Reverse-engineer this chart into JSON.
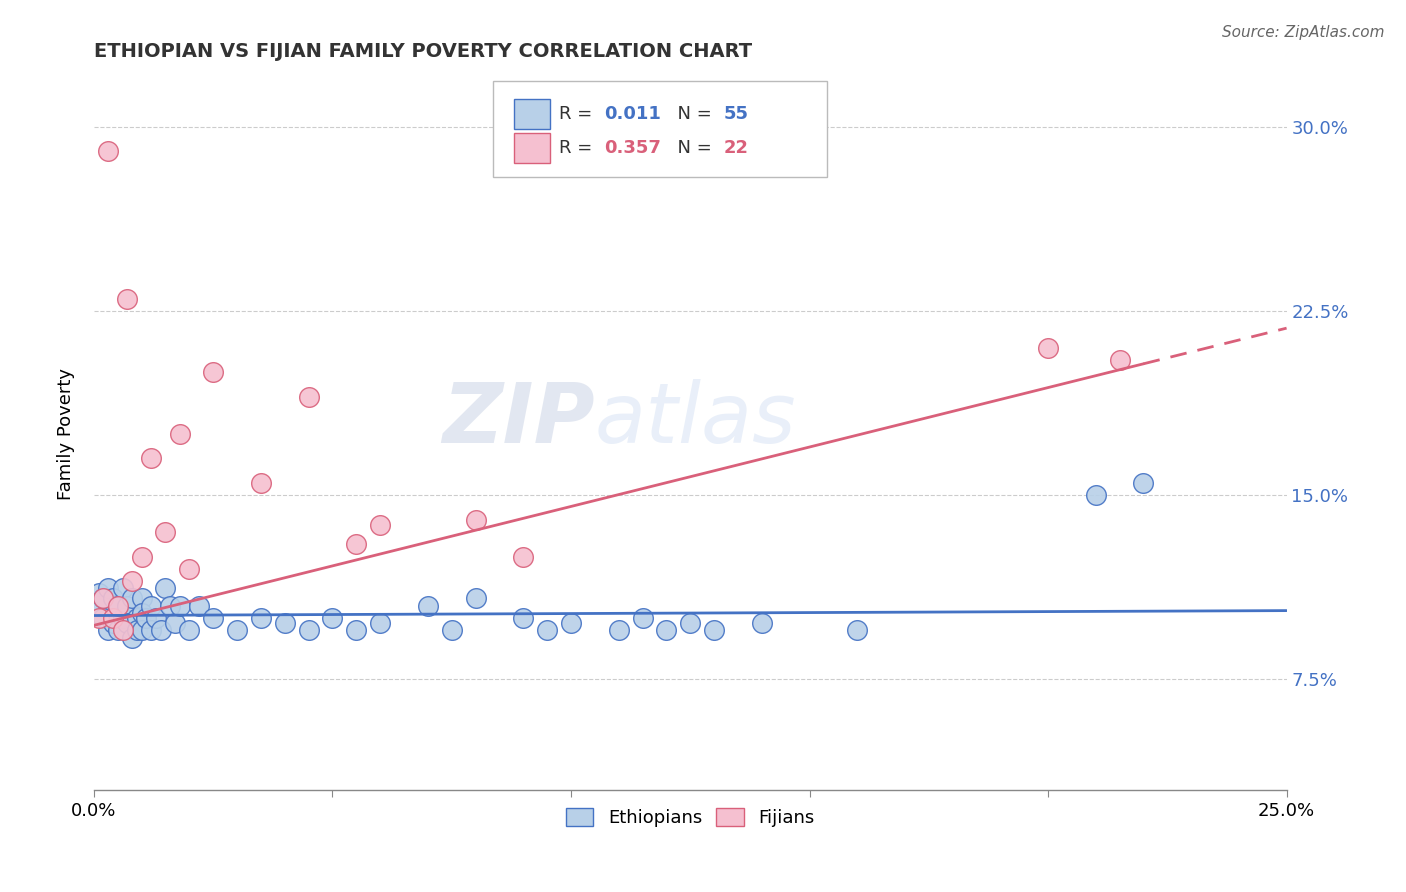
{
  "title": "ETHIOPIAN VS FIJIAN FAMILY POVERTY CORRELATION CHART",
  "source": "Source: ZipAtlas.com",
  "ylabel": "Family Poverty",
  "ethiopians_R": "0.011",
  "ethiopians_N": "55",
  "fijians_R": "0.357",
  "fijians_N": "22",
  "ethiopian_color": "#b8d0e8",
  "fijian_color": "#f5c0d0",
  "ethiopian_line_color": "#4472c4",
  "fijian_line_color": "#d9607a",
  "watermark_zip": "ZIP",
  "watermark_atlas": "atlas",
  "x_min": 0.0,
  "x_max": 0.25,
  "y_min": 0.03,
  "y_max": 0.32,
  "y_tick_vals": [
    0.075,
    0.15,
    0.225,
    0.3
  ],
  "y_tick_labels": [
    "7.5%",
    "15.0%",
    "22.5%",
    "30.0%"
  ],
  "eth_x": [
    0.001,
    0.001,
    0.002,
    0.002,
    0.003,
    0.003,
    0.004,
    0.004,
    0.005,
    0.005,
    0.006,
    0.006,
    0.007,
    0.007,
    0.008,
    0.008,
    0.009,
    0.009,
    0.01,
    0.01,
    0.01,
    0.011,
    0.012,
    0.012,
    0.013,
    0.014,
    0.015,
    0.016,
    0.017,
    0.018,
    0.02,
    0.022,
    0.025,
    0.03,
    0.035,
    0.04,
    0.045,
    0.05,
    0.055,
    0.06,
    0.07,
    0.075,
    0.08,
    0.09,
    0.095,
    0.1,
    0.11,
    0.115,
    0.12,
    0.125,
    0.13,
    0.14,
    0.16,
    0.21,
    0.22
  ],
  "eth_y": [
    0.11,
    0.105,
    0.108,
    0.1,
    0.112,
    0.095,
    0.108,
    0.098,
    0.105,
    0.095,
    0.112,
    0.1,
    0.105,
    0.098,
    0.108,
    0.092,
    0.1,
    0.095,
    0.108,
    0.102,
    0.095,
    0.1,
    0.105,
    0.095,
    0.1,
    0.095,
    0.112,
    0.105,
    0.098,
    0.105,
    0.095,
    0.105,
    0.1,
    0.095,
    0.1,
    0.098,
    0.095,
    0.1,
    0.095,
    0.098,
    0.105,
    0.095,
    0.108,
    0.1,
    0.095,
    0.098,
    0.095,
    0.1,
    0.095,
    0.098,
    0.095,
    0.098,
    0.095,
    0.15,
    0.155
  ],
  "fij_x": [
    0.001,
    0.002,
    0.003,
    0.004,
    0.005,
    0.006,
    0.007,
    0.008,
    0.01,
    0.012,
    0.015,
    0.018,
    0.02,
    0.025,
    0.035,
    0.045,
    0.055,
    0.06,
    0.08,
    0.09,
    0.2,
    0.215
  ],
  "fij_y": [
    0.1,
    0.108,
    0.29,
    0.1,
    0.105,
    0.095,
    0.23,
    0.115,
    0.125,
    0.165,
    0.135,
    0.175,
    0.12,
    0.2,
    0.155,
    0.19,
    0.13,
    0.138,
    0.14,
    0.125,
    0.21,
    0.205
  ],
  "eth_trend_x": [
    0.0,
    0.25
  ],
  "eth_trend_y": [
    0.101,
    0.103
  ],
  "fij_trend_x": [
    0.0,
    0.25
  ],
  "fij_trend_y": [
    0.097,
    0.218
  ]
}
